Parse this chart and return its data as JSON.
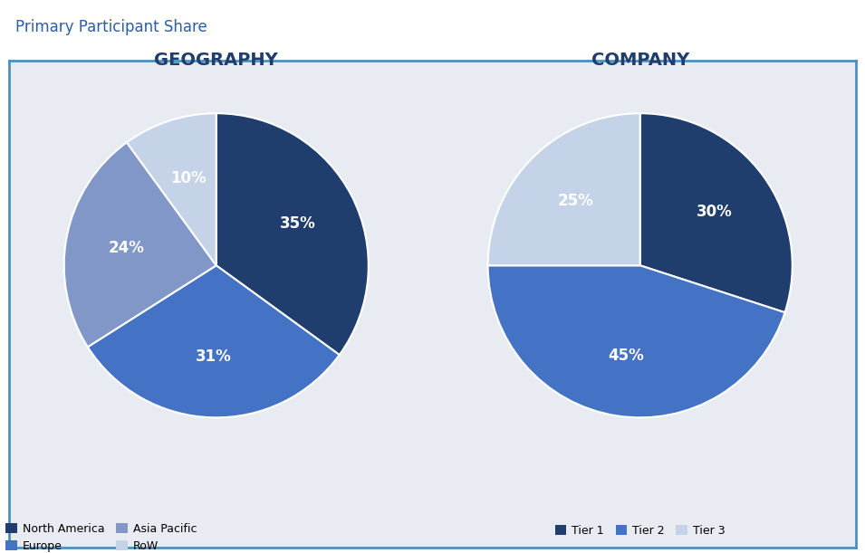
{
  "title": "Primary Participant Share",
  "geo_title": "GEOGRAPHY",
  "company_title": "COMPANY",
  "geo_labels": [
    "North America",
    "Europe",
    "Asia Pacific",
    "RoW"
  ],
  "geo_values": [
    35,
    31,
    24,
    10
  ],
  "geo_colors": [
    "#1F3E6E",
    "#4472C4",
    "#8097C8",
    "#C5D3E8"
  ],
  "geo_startangle": 90,
  "company_labels": [
    "Tier 1",
    "Tier 2",
    "Tier 3"
  ],
  "company_values": [
    30,
    45,
    25
  ],
  "company_colors": [
    "#1F3E6E",
    "#4472C4",
    "#C5D3E8"
  ],
  "company_startangle": 90,
  "fig_bg_color": "#FFFFFF",
  "box_bg_color": "#E8ECF2",
  "box_edge_color": "#4E8FC0",
  "title_color": "#2B5DA8",
  "pie_title_color": "#1F3E6E",
  "pct_color": "#FFFFFF",
  "legend_text_color": "#333333",
  "title_fontsize": 12,
  "pie_title_fontsize": 14,
  "pct_fontsize": 12,
  "legend_fontsize": 9
}
